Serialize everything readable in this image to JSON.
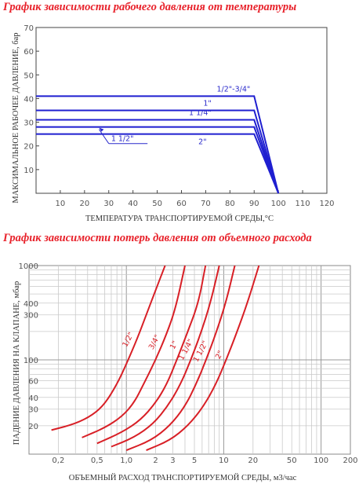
{
  "chart_data": [
    {
      "type": "line",
      "title": "График зависимости  рабочего давления от температуры",
      "xlabel": "ТЕМПЕРАТУРА ТРАНСПОРТИРУЕМОЙ СРЕДЫ,°С",
      "ylabel": "МАКСИМАЛЬНОЕ РАБОЧЕЕ ДАВЛЕНИЕ, бар",
      "xlim": [
        0,
        120
      ],
      "ylim": [
        0,
        70
      ],
      "xticks": [
        "10",
        "20",
        "30",
        "40",
        "50",
        "60",
        "70",
        "80",
        "90",
        "100",
        "110",
        "120"
      ],
      "yticks": [
        "10",
        "20",
        "30",
        "40",
        "50",
        "60",
        "70"
      ],
      "grid": false,
      "line_color": "#1f1fd0",
      "series": [
        {
          "name": "1/2\"-3/4\"",
          "x": [
            0,
            90,
            100
          ],
          "y": [
            41,
            41,
            0
          ]
        },
        {
          "name": "1\"",
          "x": [
            0,
            90,
            100
          ],
          "y": [
            35,
            35,
            0
          ]
        },
        {
          "name": "1 1/4\"",
          "x": [
            0,
            90,
            100
          ],
          "y": [
            31,
            31,
            0
          ]
        },
        {
          "name": "1 1/2\"",
          "x": [
            0,
            90,
            100
          ],
          "y": [
            28,
            28,
            0
          ]
        },
        {
          "name": "2\"",
          "x": [
            0,
            90,
            100
          ],
          "y": [
            25,
            25,
            0
          ]
        }
      ]
    },
    {
      "type": "line",
      "title": "График  зависимости потерь давления от  объемного расхода",
      "xlabel": "ОБЪЕМНЫЙ РАСХОД ТРАНСПОРТИРУЕМОЙ СРЕДЫ, м3/час",
      "ylabel": "ПАДЕНИЕ ДАВЛЕНИЯ НА КЛАПАНЕ, мбар",
      "xscale": "log",
      "yscale": "log",
      "xlim": [
        0.1,
        200
      ],
      "ylim": [
        10,
        1000
      ],
      "xticks": [
        "0,2",
        "0,5",
        "1,0",
        "2",
        "3",
        "5",
        "10",
        "20",
        "50",
        "100",
        "200"
      ],
      "xtick_values": [
        0.2,
        0.5,
        1,
        2,
        3,
        5,
        10,
        20,
        50,
        100,
        200
      ],
      "yticks": [
        "1000",
        "400",
        "300",
        "100",
        "60",
        "40",
        "30",
        "20"
      ],
      "ytick_values": [
        1000,
        400,
        300,
        100,
        60,
        40,
        30,
        20
      ],
      "grid": true,
      "line_color": "#d81f26",
      "series": [
        {
          "name": "1/2\"",
          "x": [
            0.17,
            0.3,
            0.45,
            0.6,
            0.8,
            1.0,
            1.3,
            1.6,
            2.0,
            2.5
          ],
          "y": [
            18,
            21,
            26,
            34,
            55,
            90,
            170,
            300,
            550,
            1000
          ]
        },
        {
          "name": "3/4\"",
          "x": [
            0.35,
            0.6,
            0.9,
            1.2,
            1.5,
            2.0,
            2.6,
            3.2,
            4.0
          ],
          "y": [
            15,
            19,
            25,
            35,
            55,
            100,
            190,
            350,
            1000
          ]
        },
        {
          "name": "1\"",
          "x": [
            0.5,
            0.9,
            1.4,
            2.0,
            2.6,
            3.3,
            4.2,
            5.5,
            6.5
          ],
          "y": [
            13,
            17,
            23,
            35,
            55,
            100,
            190,
            400,
            1000
          ]
        },
        {
          "name": "1 1/4\"",
          "x": [
            0.7,
            1.2,
            1.9,
            2.7,
            3.6,
            4.6,
            5.8,
            7.3,
            9.0
          ],
          "y": [
            12,
            15,
            21,
            33,
            55,
            100,
            190,
            400,
            1000
          ]
        },
        {
          "name": "1 1/2\"",
          "x": [
            1.0,
            1.8,
            2.8,
            4.0,
            5.2,
            6.6,
            8.3,
            10.5,
            13.0
          ],
          "y": [
            11,
            14,
            20,
            32,
            55,
            100,
            190,
            400,
            1000
          ]
        },
        {
          "name": "2\"",
          "x": [
            1.6,
            2.8,
            4.3,
            6.2,
            8.3,
            10.6,
            13.5,
            17.5,
            23.0
          ],
          "y": [
            11,
            14,
            20,
            32,
            55,
            100,
            190,
            400,
            1000
          ]
        }
      ]
    }
  ]
}
